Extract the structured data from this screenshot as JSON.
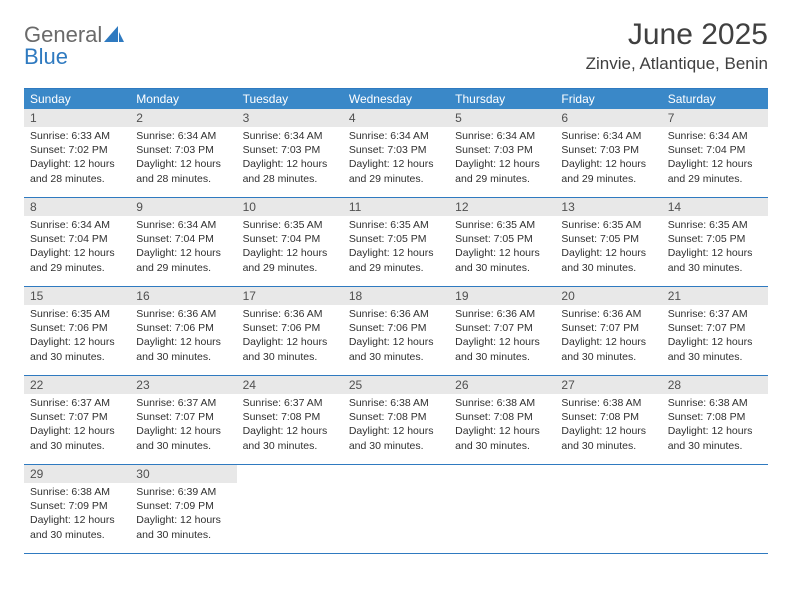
{
  "logo": {
    "general": "General",
    "blue": "Blue"
  },
  "title": "June 2025",
  "location": "Zinvie, Atlantique, Benin",
  "colors": {
    "header_bg": "#3a88c8",
    "border": "#2f7ac0",
    "daynum_bg": "#e8e8e8",
    "text": "#303030",
    "title_text": "#404040"
  },
  "weekdays": [
    "Sunday",
    "Monday",
    "Tuesday",
    "Wednesday",
    "Thursday",
    "Friday",
    "Saturday"
  ],
  "weeks": [
    [
      {
        "n": "1",
        "sr": "6:33 AM",
        "ss": "7:02 PM",
        "dl": "12 hours and 28 minutes."
      },
      {
        "n": "2",
        "sr": "6:34 AM",
        "ss": "7:03 PM",
        "dl": "12 hours and 28 minutes."
      },
      {
        "n": "3",
        "sr": "6:34 AM",
        "ss": "7:03 PM",
        "dl": "12 hours and 28 minutes."
      },
      {
        "n": "4",
        "sr": "6:34 AM",
        "ss": "7:03 PM",
        "dl": "12 hours and 29 minutes."
      },
      {
        "n": "5",
        "sr": "6:34 AM",
        "ss": "7:03 PM",
        "dl": "12 hours and 29 minutes."
      },
      {
        "n": "6",
        "sr": "6:34 AM",
        "ss": "7:03 PM",
        "dl": "12 hours and 29 minutes."
      },
      {
        "n": "7",
        "sr": "6:34 AM",
        "ss": "7:04 PM",
        "dl": "12 hours and 29 minutes."
      }
    ],
    [
      {
        "n": "8",
        "sr": "6:34 AM",
        "ss": "7:04 PM",
        "dl": "12 hours and 29 minutes."
      },
      {
        "n": "9",
        "sr": "6:34 AM",
        "ss": "7:04 PM",
        "dl": "12 hours and 29 minutes."
      },
      {
        "n": "10",
        "sr": "6:35 AM",
        "ss": "7:04 PM",
        "dl": "12 hours and 29 minutes."
      },
      {
        "n": "11",
        "sr": "6:35 AM",
        "ss": "7:05 PM",
        "dl": "12 hours and 29 minutes."
      },
      {
        "n": "12",
        "sr": "6:35 AM",
        "ss": "7:05 PM",
        "dl": "12 hours and 30 minutes."
      },
      {
        "n": "13",
        "sr": "6:35 AM",
        "ss": "7:05 PM",
        "dl": "12 hours and 30 minutes."
      },
      {
        "n": "14",
        "sr": "6:35 AM",
        "ss": "7:05 PM",
        "dl": "12 hours and 30 minutes."
      }
    ],
    [
      {
        "n": "15",
        "sr": "6:35 AM",
        "ss": "7:06 PM",
        "dl": "12 hours and 30 minutes."
      },
      {
        "n": "16",
        "sr": "6:36 AM",
        "ss": "7:06 PM",
        "dl": "12 hours and 30 minutes."
      },
      {
        "n": "17",
        "sr": "6:36 AM",
        "ss": "7:06 PM",
        "dl": "12 hours and 30 minutes."
      },
      {
        "n": "18",
        "sr": "6:36 AM",
        "ss": "7:06 PM",
        "dl": "12 hours and 30 minutes."
      },
      {
        "n": "19",
        "sr": "6:36 AM",
        "ss": "7:07 PM",
        "dl": "12 hours and 30 minutes."
      },
      {
        "n": "20",
        "sr": "6:36 AM",
        "ss": "7:07 PM",
        "dl": "12 hours and 30 minutes."
      },
      {
        "n": "21",
        "sr": "6:37 AM",
        "ss": "7:07 PM",
        "dl": "12 hours and 30 minutes."
      }
    ],
    [
      {
        "n": "22",
        "sr": "6:37 AM",
        "ss": "7:07 PM",
        "dl": "12 hours and 30 minutes."
      },
      {
        "n": "23",
        "sr": "6:37 AM",
        "ss": "7:07 PM",
        "dl": "12 hours and 30 minutes."
      },
      {
        "n": "24",
        "sr": "6:37 AM",
        "ss": "7:08 PM",
        "dl": "12 hours and 30 minutes."
      },
      {
        "n": "25",
        "sr": "6:38 AM",
        "ss": "7:08 PM",
        "dl": "12 hours and 30 minutes."
      },
      {
        "n": "26",
        "sr": "6:38 AM",
        "ss": "7:08 PM",
        "dl": "12 hours and 30 minutes."
      },
      {
        "n": "27",
        "sr": "6:38 AM",
        "ss": "7:08 PM",
        "dl": "12 hours and 30 minutes."
      },
      {
        "n": "28",
        "sr": "6:38 AM",
        "ss": "7:08 PM",
        "dl": "12 hours and 30 minutes."
      }
    ],
    [
      {
        "n": "29",
        "sr": "6:38 AM",
        "ss": "7:09 PM",
        "dl": "12 hours and 30 minutes."
      },
      {
        "n": "30",
        "sr": "6:39 AM",
        "ss": "7:09 PM",
        "dl": "12 hours and 30 minutes."
      },
      null,
      null,
      null,
      null,
      null
    ]
  ],
  "labels": {
    "sunrise": "Sunrise: ",
    "sunset": "Sunset: ",
    "daylight": "Daylight: "
  }
}
